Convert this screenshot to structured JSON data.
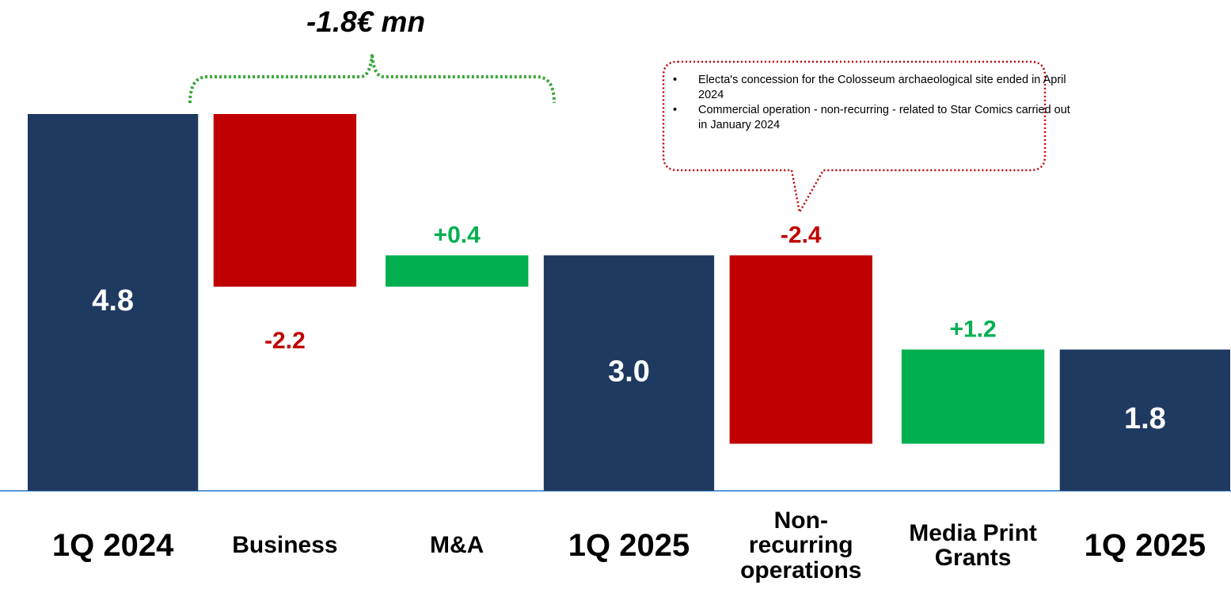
{
  "chart_data": {
    "type": "waterfall",
    "annotation": "-1.8€ mn",
    "note": [
      "Electa's concession for the Colosseum archaeological site ended in April 2024",
      "Commercial operation - non-recurring - related to Star Comics carried out in January 2024"
    ],
    "categories": [
      "1Q 2024",
      "Business",
      "M&A",
      "1Q 2025",
      "Non-recurring operations",
      "Media Print Grants",
      "1Q 2025"
    ],
    "values": [
      4.8,
      -2.2,
      0.4,
      3.0,
      -2.4,
      1.2,
      1.8
    ],
    "value_labels": [
      "4.8",
      "-2.2",
      "+0.4",
      "3.0",
      "-2.4",
      "+1.2",
      "1.8"
    ],
    "totals": [
      true,
      false,
      false,
      true,
      false,
      false,
      true
    ],
    "colors": {
      "total": "#1f3a60",
      "decrease": "#c00000",
      "increase": "#00b050"
    },
    "ylim": [
      0,
      6
    ]
  }
}
